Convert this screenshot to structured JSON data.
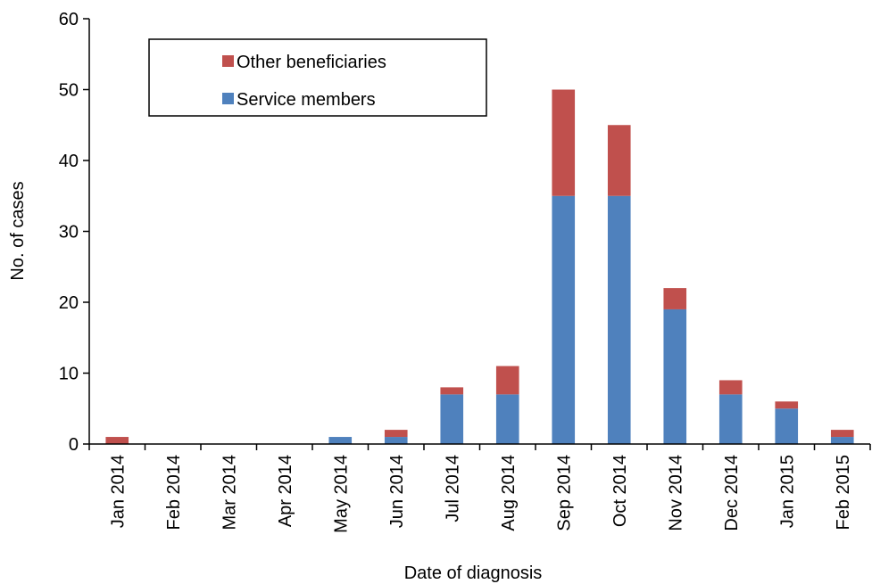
{
  "chart_data": {
    "type": "bar",
    "stacked": true,
    "categories": [
      "Jan 2014",
      "Feb 2014",
      "Mar 2014",
      "Apr 2014",
      "May 2014",
      "Jun 2014",
      "Jul 2014",
      "Aug 2014",
      "Sep 2014",
      "Oct 2014",
      "Nov 2014",
      "Dec 2014",
      "Jan 2015",
      "Feb 2015"
    ],
    "series": [
      {
        "name": "Service members",
        "color": "#4f81bd",
        "values": [
          0,
          0,
          0,
          0,
          1,
          1,
          7,
          7,
          35,
          35,
          19,
          7,
          5,
          1
        ]
      },
      {
        "name": "Other beneficiaries",
        "color": "#c0504d",
        "values": [
          1,
          0,
          0,
          0,
          0,
          1,
          1,
          4,
          15,
          10,
          3,
          2,
          1,
          1
        ]
      }
    ],
    "xlabel": "Date of diagnosis",
    "ylabel": "No. of cases",
    "ylim": [
      0,
      60
    ],
    "yticks": [
      0,
      10,
      20,
      30,
      40,
      50,
      60
    ],
    "grid": false,
    "legend": {
      "placement": "top-left",
      "entries": [
        {
          "label": "Other beneficiaries",
          "color": "#c0504d"
        },
        {
          "label": "Service members",
          "color": "#4f81bd"
        }
      ]
    }
  }
}
